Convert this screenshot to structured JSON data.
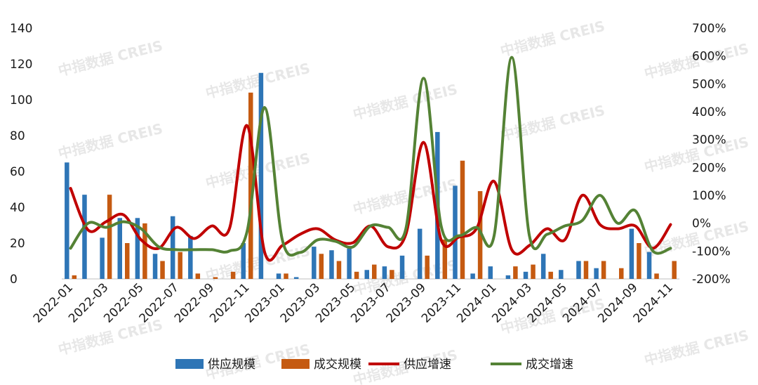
{
  "watermark": "中指数据 CREIS",
  "chart_data": {
    "type": "bar",
    "title": "",
    "xlabel": "",
    "ylabel": "",
    "ylim": [
      0,
      140
    ],
    "y2lim": [
      -200,
      700
    ],
    "y_ticks": [
      0,
      20,
      40,
      60,
      80,
      100,
      120,
      140
    ],
    "y2_ticks": [
      "-200%",
      "-100%",
      "0%",
      "100%",
      "200%",
      "300%",
      "400%",
      "500%",
      "600%",
      "700%"
    ],
    "categories": [
      "2022-01",
      "2022-02",
      "2022-03",
      "2022-04",
      "2022-05",
      "2022-06",
      "2022-07",
      "2022-08",
      "2022-09",
      "2022-10",
      "2022-11",
      "2022-12",
      "2023-01",
      "2023-02",
      "2023-03",
      "2023-04",
      "2023-05",
      "2023-06",
      "2023-07",
      "2023-08",
      "2023-09",
      "2023-10",
      "2023-11",
      "2023-12",
      "2024-01",
      "2024-02",
      "2024-03",
      "2024-04",
      "2024-05",
      "2024-06",
      "2024-07",
      "2024-08",
      "2024-09",
      "2024-10",
      "2024-11"
    ],
    "x_tick_labels": [
      "2022-01",
      "2022-03",
      "2022-05",
      "2022-07",
      "2022-09",
      "2022-11",
      "2023-01",
      "2023-03",
      "2023-05",
      "2023-07",
      "2023-09",
      "2023-11",
      "2024-01",
      "2024-03",
      "2024-05",
      "2024-07",
      "2024-09",
      "2024-11"
    ],
    "legend_position": "bottom",
    "series": [
      {
        "name": "供应规模",
        "kind": "bar",
        "axis": "left",
        "color": "#2e75b6",
        "values": [
          65,
          47,
          23,
          34,
          34,
          14,
          35,
          24,
          0,
          0,
          20,
          115,
          3,
          1,
          18,
          16,
          17,
          5,
          7,
          13,
          28,
          82,
          52,
          3,
          7,
          2,
          4,
          14,
          5,
          10,
          6,
          0,
          28,
          15,
          0
        ]
      },
      {
        "name": "成交规模",
        "kind": "bar",
        "axis": "left",
        "color": "#c55a11",
        "values": [
          2,
          0,
          47,
          20,
          31,
          10,
          15,
          3,
          1,
          4,
          104,
          0,
          3,
          0,
          14,
          10,
          4,
          8,
          5,
          0,
          13,
          22,
          66,
          49,
          0,
          7,
          8,
          4,
          0,
          10,
          10,
          6,
          20,
          3,
          10
        ]
      },
      {
        "name": "供应增速",
        "kind": "line",
        "axis": "right",
        "color": "#c00000",
        "values": [
          125,
          -25,
          5,
          30,
          -60,
          -90,
          -15,
          -55,
          -10,
          -20,
          350,
          -105,
          -80,
          -40,
          -20,
          -60,
          -70,
          -10,
          -85,
          -40,
          290,
          -60,
          -50,
          -20,
          150,
          -95,
          -80,
          -20,
          -60,
          100,
          -5,
          -20,
          -10,
          -90,
          -5
        ]
      },
      {
        "name": "成交增速",
        "kind": "line",
        "axis": "right",
        "color": "#548235",
        "values": [
          -90,
          0,
          -15,
          5,
          -20,
          -85,
          -95,
          -95,
          -95,
          -100,
          -30,
          415,
          -60,
          -105,
          -60,
          -65,
          -85,
          -10,
          -15,
          -20,
          520,
          -10,
          -45,
          -15,
          -45,
          595,
          -45,
          -40,
          -10,
          10,
          100,
          0,
          45,
          -100,
          -90
        ]
      }
    ]
  }
}
